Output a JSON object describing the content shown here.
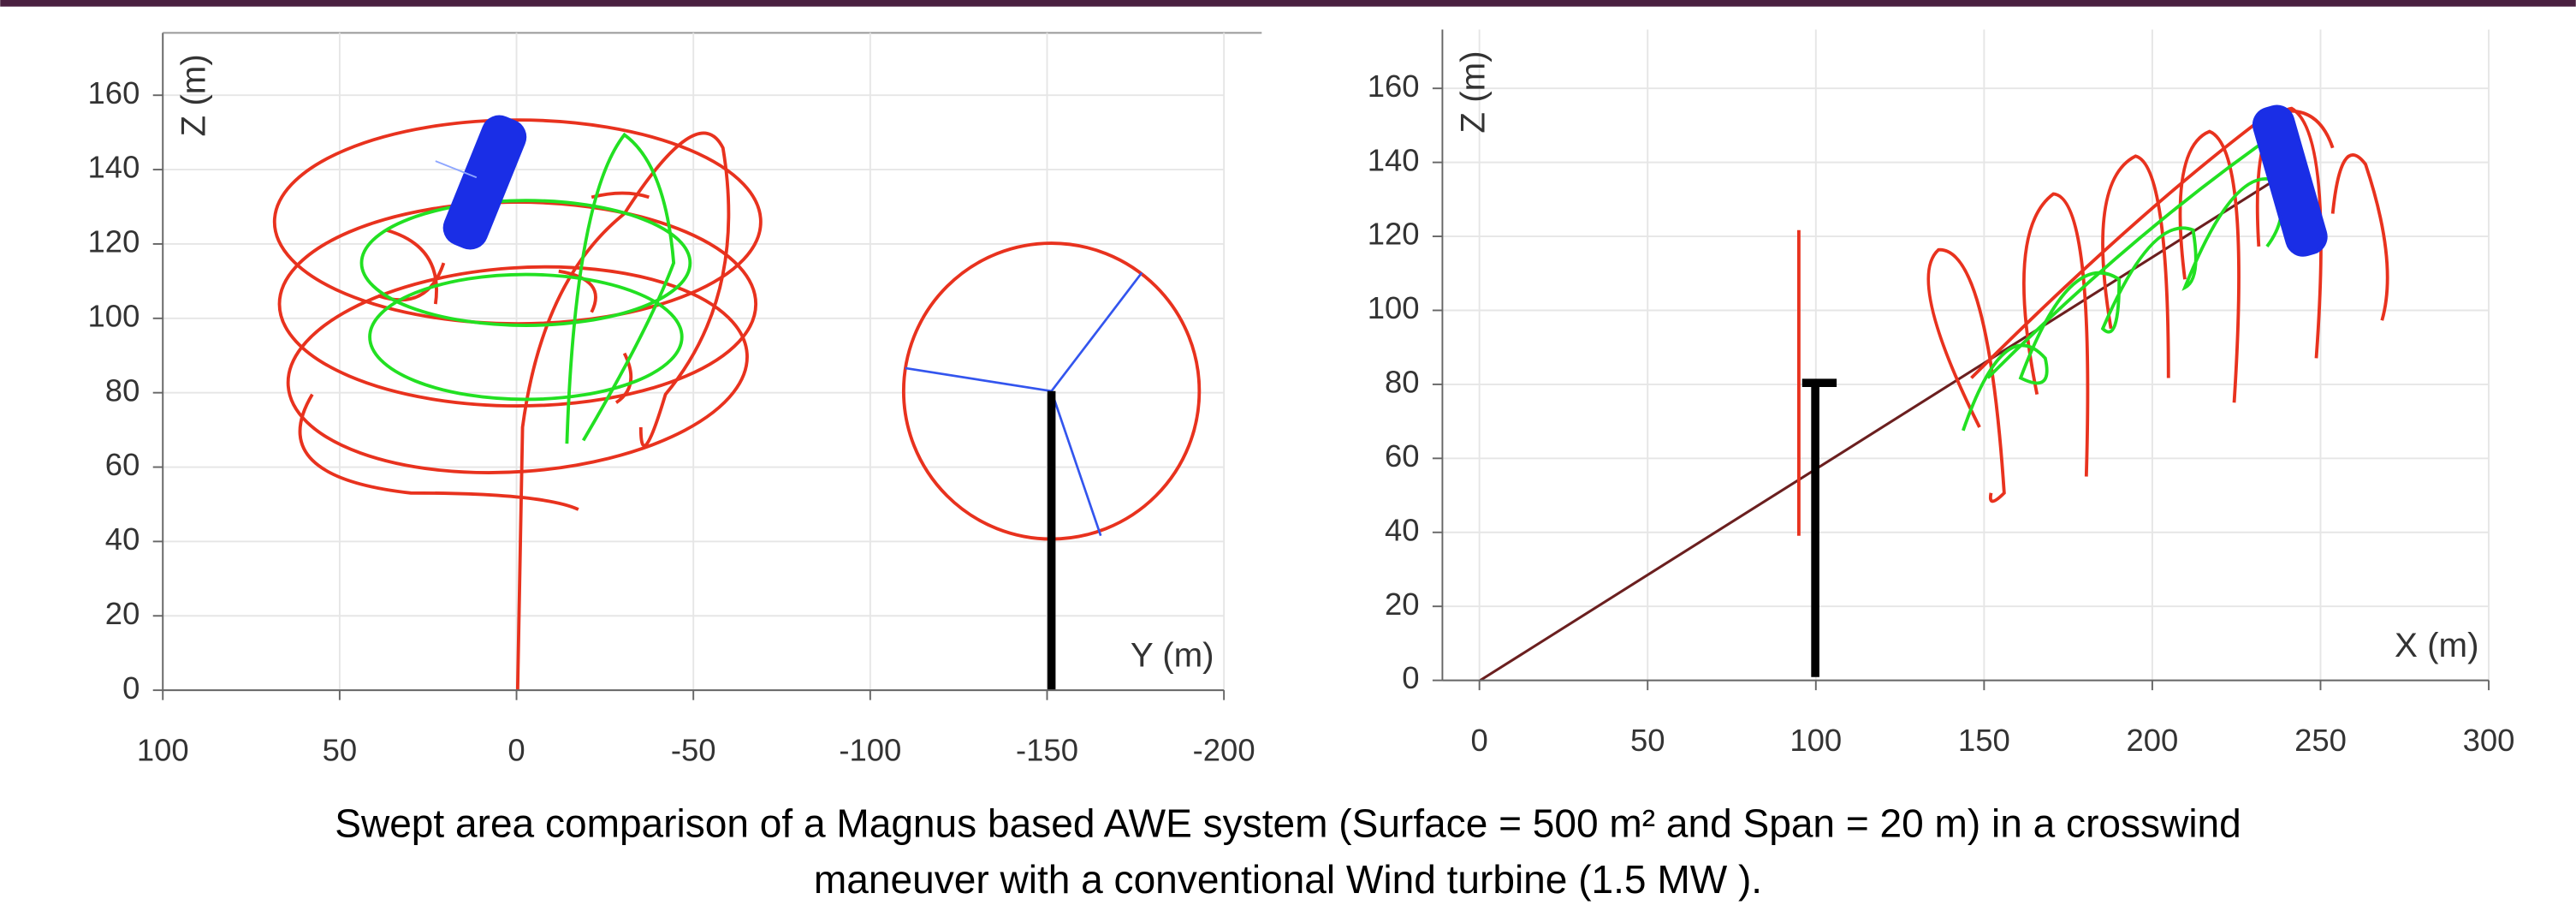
{
  "chart_data": [
    {
      "type": "trajectory",
      "x_label": "Y (m)",
      "y_label": "Z (m)",
      "xlim": [
        100,
        -200
      ],
      "xticks": [
        100,
        50,
        0,
        -50,
        -100,
        -150,
        -200
      ],
      "ylim": [
        0,
        175
      ],
      "yticks": [
        0,
        20,
        40,
        60,
        80,
        100,
        120,
        140,
        160
      ],
      "grid": true
    },
    {
      "type": "trajectory",
      "x_label": "X (m)",
      "y_label": "Z (m)",
      "xlim": [
        -11,
        300
      ],
      "xticks": [
        0,
        50,
        100,
        150,
        200,
        250,
        300
      ],
      "ylim": [
        0,
        175
      ],
      "yticks": [
        0,
        20,
        40,
        60,
        80,
        100,
        120,
        140,
        160
      ],
      "grid": true
    }
  ],
  "caption": [
    "Swept area comparison of a Magnus based AWE system (Surface = 500 m² and Span = 20 m) in a crosswind",
    "maneuver with a conventional Wind turbine (1.5 MW )."
  ]
}
